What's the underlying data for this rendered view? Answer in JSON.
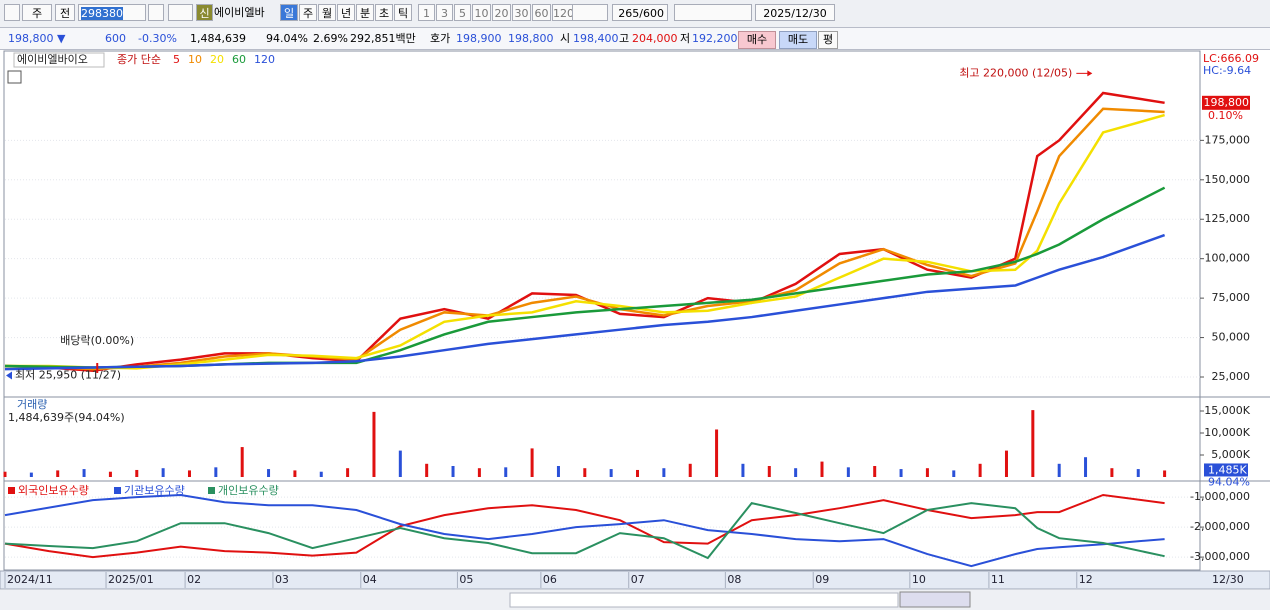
{
  "toolbar": {
    "market": "주",
    "scope": "전",
    "code": "298380",
    "badge": "신",
    "name": "에이비엘바",
    "periods": [
      "일",
      "주",
      "월",
      "년",
      "분",
      "초",
      "틱"
    ],
    "intervals": [
      "1",
      "3",
      "5",
      "10",
      "20",
      "30",
      "60",
      "120"
    ],
    "count": "265",
    "max": "/600",
    "date": "2025/12/30"
  },
  "quote": {
    "price": "198,800 ▼",
    "change": "600",
    "rate": "-0.30%",
    "volume": "1,484,639",
    "volume_ratio": "94.04%",
    "turnover": "2.69%",
    "amount": "292,851백만",
    "bid_label": "호가",
    "ask": "198,900",
    "bid": "198,800",
    "open_label": "시",
    "open": "198,400",
    "high_label": "고",
    "high": "204,000",
    "low_label": "저",
    "low": "192,200",
    "buy": "매수",
    "sell": "매도",
    "avg": "평"
  },
  "chart_data": [
    {
      "type": "line",
      "title": "에이비엘바이오",
      "legend_title": "종가 단순",
      "grid": true,
      "xlim": [
        0,
        265
      ],
      "x": [
        0,
        10,
        20,
        30,
        40,
        50,
        60,
        70,
        80,
        90,
        100,
        110,
        120,
        130,
        140,
        150,
        160,
        170,
        180,
        190,
        200,
        210,
        220,
        230,
        235,
        240,
        250,
        264
      ],
      "series": [
        {
          "name": "5",
          "color": "#e01010",
          "values": [
            32000,
            31000,
            29000,
            33000,
            36000,
            40000,
            40000,
            37000,
            35000,
            62000,
            68000,
            62000,
            78000,
            77000,
            65000,
            63000,
            75000,
            72000,
            84000,
            103000,
            106000,
            93000,
            88000,
            100000,
            165000,
            175000,
            205000,
            198800
          ]
        },
        {
          "name": "10",
          "color": "#f08a00",
          "values": [
            32000,
            31500,
            30000,
            31500,
            34000,
            38000,
            40000,
            38000,
            36000,
            55000,
            66000,
            64000,
            72000,
            76000,
            68000,
            64000,
            70000,
            73000,
            80000,
            97000,
            106000,
            96000,
            89000,
            97000,
            130000,
            165000,
            195000,
            193000
          ]
        },
        {
          "name": "20",
          "color": "#f4e000",
          "values": [
            32000,
            32000,
            31000,
            30500,
            33000,
            36000,
            39000,
            38500,
            37000,
            45000,
            60000,
            64000,
            66000,
            73000,
            70000,
            66000,
            67000,
            72000,
            76000,
            88000,
            100000,
            98000,
            92000,
            93000,
            105000,
            135000,
            180000,
            191000
          ]
        },
        {
          "name": "60",
          "color": "#1a9a3a",
          "values": [
            32000,
            31500,
            31000,
            31500,
            32000,
            33000,
            34000,
            34000,
            34000,
            42000,
            52000,
            60000,
            63000,
            66000,
            68000,
            70000,
            72000,
            74000,
            78000,
            82000,
            86000,
            90000,
            92000,
            98000,
            103000,
            109000,
            125000,
            145000
          ]
        },
        {
          "name": "120",
          "color": "#2a50d8",
          "values": [
            30000,
            30500,
            31000,
            31500,
            32000,
            33000,
            33500,
            34000,
            35000,
            38000,
            42000,
            46000,
            49000,
            52000,
            55000,
            58000,
            60000,
            63000,
            67000,
            71000,
            75000,
            79000,
            81000,
            83000,
            88000,
            93000,
            101000,
            115000
          ]
        }
      ],
      "ylim": [
        13600,
        231000
      ],
      "yticks": [
        {
          "value": 25000,
          "label": "25,000"
        },
        {
          "value": 50000,
          "label": "50,000"
        },
        {
          "value": 75000,
          "label": "75,000"
        },
        {
          "value": 100000,
          "label": "100,000"
        },
        {
          "value": 125000,
          "label": "125,000"
        },
        {
          "value": 150000,
          "label": "150,000"
        },
        {
          "value": 175000,
          "label": "175,000"
        }
      ],
      "high_note": {
        "text": "최고 220,000 (12/05)",
        "x": 248,
        "y": 220000
      },
      "low_note": {
        "text": "최저 25,950 (11/27)",
        "y": 25950
      },
      "dividend_note": {
        "text": "배당락(0.00%)",
        "x": 21
      },
      "right_labels": [
        {
          "text": "LC:666.09",
          "color": "#e01010"
        },
        {
          "text": "HC:-9.64",
          "color": "#2a50d8"
        }
      ],
      "last": {
        "value": 198800,
        "label": "198,800",
        "change": "0.10%"
      }
    },
    {
      "type": "bar",
      "title": "거래량",
      "subtitle": "1,484,639주(94.04%)",
      "xlim": [
        0,
        265
      ],
      "x": [
        0,
        6,
        12,
        18,
        24,
        30,
        36,
        42,
        48,
        54,
        60,
        66,
        72,
        78,
        84,
        90,
        96,
        102,
        108,
        114,
        120,
        126,
        132,
        138,
        144,
        150,
        156,
        162,
        168,
        174,
        180,
        186,
        192,
        198,
        204,
        210,
        216,
        222,
        228,
        234,
        240,
        246,
        252,
        258,
        264
      ],
      "values": [
        1200000,
        1000000,
        1500000,
        1800000,
        1200000,
        1600000,
        2000000,
        1500000,
        2200000,
        6800000,
        1800000,
        1500000,
        1200000,
        2000000,
        14800000,
        6000000,
        3000000,
        2500000,
        2000000,
        2200000,
        6500000,
        2500000,
        2000000,
        1800000,
        1600000,
        2000000,
        3000000,
        10800000,
        3000000,
        2500000,
        2000000,
        3500000,
        2200000,
        2500000,
        1800000,
        2000000,
        1500000,
        3000000,
        6000000,
        15200000,
        3000000,
        4500000,
        2000000,
        1800000,
        1484639
      ],
      "colors": [
        "#e01010",
        "#2a50d8",
        "#e01010",
        "#2a50d8",
        "#e01010",
        "#e01010",
        "#2a50d8",
        "#e01010",
        "#2a50d8",
        "#e01010",
        "#2a50d8",
        "#e01010",
        "#2a50d8",
        "#e01010",
        "#e01010",
        "#2a50d8",
        "#e01010",
        "#2a50d8",
        "#e01010",
        "#2a50d8",
        "#e01010",
        "#2a50d8",
        "#e01010",
        "#2a50d8",
        "#e01010",
        "#2a50d8",
        "#e01010",
        "#e01010",
        "#2a50d8",
        "#e01010",
        "#2a50d8",
        "#e01010",
        "#2a50d8",
        "#e01010",
        "#2a50d8",
        "#e01010",
        "#2a50d8",
        "#e01010",
        "#e01010",
        "#e01010",
        "#2a50d8",
        "#2a50d8",
        "#e01010",
        "#2a50d8",
        "#e01010"
      ],
      "ylim": [
        0,
        17500000
      ],
      "yticks": [
        {
          "value": 15000000,
          "label": "15,000K"
        },
        {
          "value": 10000000,
          "label": "10,000K"
        },
        {
          "value": 5000000,
          "label": "5,000K"
        }
      ],
      "last": {
        "label": "1,485K",
        "change": "94.04%"
      }
    },
    {
      "type": "line",
      "grid": true,
      "xlim": [
        0,
        265
      ],
      "x": [
        0,
        10,
        20,
        30,
        40,
        50,
        60,
        70,
        80,
        90,
        100,
        110,
        120,
        130,
        140,
        150,
        160,
        170,
        180,
        190,
        200,
        210,
        220,
        230,
        235,
        240,
        250,
        264
      ],
      "series": [
        {
          "name": "외국인보유수량",
          "color": "#e01010",
          "values": [
            -2550000,
            -2800000,
            -3000000,
            -2850000,
            -2650000,
            -2800000,
            -2850000,
            -2950000,
            -2850000,
            -1970000,
            -1600000,
            -1370000,
            -1270000,
            -1430000,
            -1770000,
            -2500000,
            -2550000,
            -1770000,
            -1600000,
            -1370000,
            -1100000,
            -1430000,
            -1700000,
            -1600000,
            -1500000,
            -1500000,
            -930000,
            -1200000
          ]
        },
        {
          "name": "기관보유수량",
          "color": "#2a50d8",
          "values": [
            -1600000,
            -1350000,
            -1100000,
            -1000000,
            -930000,
            -1170000,
            -1270000,
            -1270000,
            -1430000,
            -1900000,
            -2230000,
            -2400000,
            -2230000,
            -2000000,
            -1900000,
            -1770000,
            -2100000,
            -2230000,
            -2400000,
            -2470000,
            -2400000,
            -2900000,
            -3300000,
            -2900000,
            -2730000,
            -2670000,
            -2570000,
            -2400000
          ]
        },
        {
          "name": "개인보유수량",
          "color": "#2a9060",
          "values": [
            -2550000,
            -2630000,
            -2700000,
            -2470000,
            -1870000,
            -1870000,
            -2200000,
            -2700000,
            -2370000,
            -2030000,
            -2370000,
            -2530000,
            -2870000,
            -2870000,
            -2200000,
            -2370000,
            -3030000,
            -1200000,
            -1530000,
            -1870000,
            -2200000,
            -1430000,
            -1200000,
            -1370000,
            -2030000,
            -2370000,
            -2530000,
            -2970000
          ]
        }
      ],
      "ylim": [
        -3430000,
        -530000
      ],
      "yticks": [
        {
          "value": -1000000,
          "label": "-1,000,000"
        },
        {
          "value": -2000000,
          "label": "-2,000,000"
        },
        {
          "value": -3000000,
          "label": "-3,000,000"
        }
      ],
      "xticks": [
        {
          "value": 0,
          "label": "2024/11"
        },
        {
          "value": 23,
          "label": "2025/01"
        },
        {
          "value": 41,
          "label": "02"
        },
        {
          "value": 61,
          "label": "03"
        },
        {
          "value": 81,
          "label": "04"
        },
        {
          "value": 103,
          "label": "05"
        },
        {
          "value": 122,
          "label": "06"
        },
        {
          "value": 142,
          "label": "07"
        },
        {
          "value": 164,
          "label": "08"
        },
        {
          "value": 184,
          "label": "09"
        },
        {
          "value": 206,
          "label": "10"
        },
        {
          "value": 224,
          "label": "11"
        },
        {
          "value": 244,
          "label": "12"
        }
      ],
      "x_end_label": "12/30"
    }
  ]
}
